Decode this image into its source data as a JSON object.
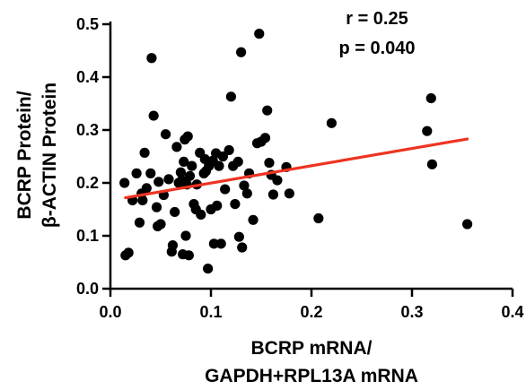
{
  "chart_data": {
    "type": "scatter",
    "xlabel_lines": [
      "BCRP mRNA/",
      "GAPDH+RPL13A mRNA"
    ],
    "ylabel_lines": [
      "BCRP Protein/",
      "β-ACTIN Protein"
    ],
    "xlim": [
      0.0,
      0.4
    ],
    "ylim": [
      0.0,
      0.5
    ],
    "xticks": [
      0.0,
      0.1,
      0.2,
      0.3,
      0.4
    ],
    "xtick_labels": [
      "0.0",
      "0.1",
      "0.2",
      "0.3",
      "0.4"
    ],
    "yticks": [
      0.0,
      0.1,
      0.2,
      0.3,
      0.4,
      0.5
    ],
    "ytick_labels": [
      "0.0",
      "0.1",
      "0.2",
      "0.3",
      "0.4",
      "0.5"
    ],
    "grid": false,
    "annotations": [
      "r = 0.25",
      "p = 0.040"
    ],
    "colors": {
      "points": "#000000",
      "fit_line": "#ee3322"
    },
    "fit_line": {
      "x": [
        0.015,
        0.355
      ],
      "y": [
        0.172,
        0.283
      ]
    },
    "points": [
      [
        0.014,
        0.2
      ],
      [
        0.015,
        0.063
      ],
      [
        0.018,
        0.068
      ],
      [
        0.022,
        0.167
      ],
      [
        0.026,
        0.218
      ],
      [
        0.029,
        0.125
      ],
      [
        0.031,
        0.18
      ],
      [
        0.032,
        0.167
      ],
      [
        0.034,
        0.257
      ],
      [
        0.036,
        0.19
      ],
      [
        0.04,
        0.218
      ],
      [
        0.041,
        0.436
      ],
      [
        0.043,
        0.327
      ],
      [
        0.046,
        0.154
      ],
      [
        0.047,
        0.118
      ],
      [
        0.048,
        0.202
      ],
      [
        0.05,
        0.122
      ],
      [
        0.053,
        0.177
      ],
      [
        0.055,
        0.292
      ],
      [
        0.058,
        0.207
      ],
      [
        0.061,
        0.07
      ],
      [
        0.062,
        0.082
      ],
      [
        0.064,
        0.145
      ],
      [
        0.066,
        0.268
      ],
      [
        0.068,
        0.2
      ],
      [
        0.07,
        0.22
      ],
      [
        0.071,
        0.205
      ],
      [
        0.072,
        0.065
      ],
      [
        0.073,
        0.24
      ],
      [
        0.074,
        0.282
      ],
      [
        0.075,
        0.1
      ],
      [
        0.076,
        0.197
      ],
      [
        0.077,
        0.288
      ],
      [
        0.078,
        0.063
      ],
      [
        0.079,
        0.213
      ],
      [
        0.081,
        0.232
      ],
      [
        0.083,
        0.16
      ],
      [
        0.085,
        0.15
      ],
      [
        0.086,
        0.197
      ],
      [
        0.089,
        0.257
      ],
      [
        0.09,
        0.14
      ],
      [
        0.093,
        0.218
      ],
      [
        0.094,
        0.245
      ],
      [
        0.095,
        0.222
      ],
      [
        0.097,
        0.038
      ],
      [
        0.098,
        0.232
      ],
      [
        0.1,
        0.15
      ],
      [
        0.102,
        0.242
      ],
      [
        0.103,
        0.085
      ],
      [
        0.105,
        0.256
      ],
      [
        0.106,
        0.157
      ],
      [
        0.108,
        0.232
      ],
      [
        0.11,
        0.085
      ],
      [
        0.112,
        0.25
      ],
      [
        0.114,
        0.188
      ],
      [
        0.118,
        0.262
      ],
      [
        0.12,
        0.363
      ],
      [
        0.122,
        0.232
      ],
      [
        0.124,
        0.16
      ],
      [
        0.127,
        0.24
      ],
      [
        0.128,
        0.098
      ],
      [
        0.13,
        0.447
      ],
      [
        0.131,
        0.078
      ],
      [
        0.133,
        0.195
      ],
      [
        0.136,
        0.18
      ],
      [
        0.138,
        0.218
      ],
      [
        0.142,
        0.13
      ],
      [
        0.146,
        0.275
      ],
      [
        0.148,
        0.482
      ],
      [
        0.15,
        0.278
      ],
      [
        0.154,
        0.285
      ],
      [
        0.156,
        0.337
      ],
      [
        0.158,
        0.238
      ],
      [
        0.16,
        0.215
      ],
      [
        0.162,
        0.178
      ],
      [
        0.166,
        0.205
      ],
      [
        0.175,
        0.23
      ],
      [
        0.178,
        0.18
      ],
      [
        0.207,
        0.133
      ],
      [
        0.22,
        0.313
      ],
      [
        0.315,
        0.298
      ],
      [
        0.319,
        0.36
      ],
      [
        0.32,
        0.235
      ],
      [
        0.355,
        0.122
      ]
    ]
  }
}
